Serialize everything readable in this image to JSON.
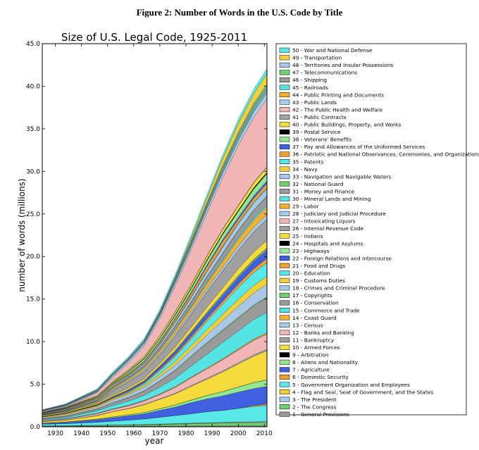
{
  "figure_title": "Figure 2: Number of Words in the U.S. Code by Title",
  "chart_data": {
    "type": "area",
    "title": "Size of U.S. Legal Code, 1925-2011",
    "xlabel": "year",
    "ylabel": "number of words (millions)",
    "xlim": [
      1925,
      2011
    ],
    "ylim": [
      0,
      45
    ],
    "x_ticks": [
      "1930",
      "1940",
      "1950",
      "1960",
      "1970",
      "1980",
      "1990",
      "2000",
      "2010"
    ],
    "y_ticks": [
      "0.0",
      "5.0",
      "10.0",
      "15.0",
      "20.0",
      "25.0",
      "30.0",
      "35.0",
      "40.0",
      "45.0"
    ],
    "legend_position": "right",
    "x": [
      1925,
      1934,
      1946,
      1952,
      1958,
      1964,
      1970,
      1976,
      1982,
      1988,
      1994,
      2000,
      2006,
      2011
    ],
    "series_colors": [
      "#9a9a9a",
      "#6fd06f",
      "#a9c7e6",
      "#f2d03a",
      "#58e8e8",
      "#f0a030",
      "#4060e0",
      "#90e890",
      "#000000",
      "#f5dc3c",
      "#a0a0a0",
      "#f3b6b6",
      "#a8ccec",
      "#f5b030",
      "#54e4e4"
    ],
    "series": [
      {
        "name": "1 - General Provisions",
        "values": [
          0.05,
          0.05,
          0.06,
          0.07,
          0.07,
          0.08,
          0.08,
          0.08,
          0.09,
          0.09,
          0.09,
          0.1,
          0.1,
          0.1
        ]
      },
      {
        "name": "2 - The Congress",
        "values": [
          0.04,
          0.05,
          0.08,
          0.1,
          0.12,
          0.14,
          0.18,
          0.22,
          0.26,
          0.3,
          0.33,
          0.36,
          0.38,
          0.4
        ]
      },
      {
        "name": "3 - The President",
        "values": [
          0.01,
          0.01,
          0.02,
          0.02,
          0.02,
          0.03,
          0.03,
          0.04,
          0.05,
          0.05,
          0.06,
          0.06,
          0.07,
          0.07
        ]
      },
      {
        "name": "4 - Flag and Seal, Seat of Government, and the States",
        "values": [
          0.01,
          0.01,
          0.02,
          0.02,
          0.02,
          0.02,
          0.03,
          0.03,
          0.03,
          0.03,
          0.04,
          0.04,
          0.04,
          0.04
        ]
      },
      {
        "name": "5 - Government Organization and Employees",
        "values": [
          0.2,
          0.25,
          0.35,
          0.45,
          0.55,
          0.65,
          0.8,
          0.95,
          1.1,
          1.3,
          1.4,
          1.6,
          1.8,
          1.9
        ]
      },
      {
        "name": "6 - Domestic Security",
        "values": [
          0,
          0,
          0,
          0,
          0,
          0,
          0,
          0,
          0,
          0,
          0,
          0,
          0.1,
          0.15
        ]
      },
      {
        "name": "7 - Agriculture",
        "values": [
          0.1,
          0.15,
          0.3,
          0.4,
          0.5,
          0.6,
          0.8,
          1.0,
          1.3,
          1.5,
          1.7,
          1.9,
          2.0,
          2.1
        ]
      },
      {
        "name": "8 - Aliens and Nationality",
        "values": [
          0.03,
          0.04,
          0.06,
          0.1,
          0.12,
          0.15,
          0.2,
          0.25,
          0.3,
          0.4,
          0.5,
          0.6,
          0.7,
          0.75
        ]
      },
      {
        "name": "9 - Arbitration",
        "values": [
          0.0,
          0.01,
          0.01,
          0.01,
          0.01,
          0.01,
          0.01,
          0.01,
          0.01,
          0.01,
          0.01,
          0.01,
          0.01,
          0.01
        ]
      },
      {
        "name": "10 - Armed Forces",
        "values": [
          0.15,
          0.2,
          0.4,
          0.6,
          0.7,
          0.9,
          1.1,
          1.3,
          1.6,
          1.9,
          2.3,
          2.7,
          3.1,
          3.4
        ]
      },
      {
        "name": "11 - Bankruptcy",
        "values": [
          0.01,
          0.02,
          0.03,
          0.03,
          0.04,
          0.04,
          0.05,
          0.06,
          0.1,
          0.11,
          0.12,
          0.14,
          0.16,
          0.17
        ]
      },
      {
        "name": "12 - Banks and Banking",
        "values": [
          0.1,
          0.12,
          0.2,
          0.25,
          0.3,
          0.4,
          0.5,
          0.7,
          0.9,
          1.1,
          1.3,
          1.5,
          1.7,
          1.8
        ]
      },
      {
        "name": "13 - Census",
        "values": [
          0.01,
          0.01,
          0.01,
          0.01,
          0.02,
          0.02,
          0.02,
          0.02,
          0.02,
          0.02,
          0.03,
          0.03,
          0.03,
          0.03
        ]
      },
      {
        "name": "14 - Coast Guard",
        "values": [
          0.02,
          0.02,
          0.04,
          0.05,
          0.05,
          0.06,
          0.06,
          0.07,
          0.08,
          0.09,
          0.1,
          0.11,
          0.13,
          0.14
        ]
      },
      {
        "name": "15 - Commerce and Trade",
        "values": [
          0.1,
          0.15,
          0.3,
          0.4,
          0.5,
          0.6,
          0.8,
          1.0,
          1.3,
          1.6,
          1.9,
          2.1,
          2.3,
          2.4
        ]
      },
      {
        "name": "16 - Conservation",
        "values": [
          0.1,
          0.15,
          0.2,
          0.3,
          0.4,
          0.5,
          0.7,
          0.9,
          1.1,
          1.3,
          1.4,
          1.5,
          1.6,
          1.7
        ]
      },
      {
        "name": "17 - Copyrights",
        "values": [
          0.01,
          0.01,
          0.02,
          0.02,
          0.02,
          0.03,
          0.03,
          0.06,
          0.07,
          0.08,
          0.09,
          0.1,
          0.1,
          0.11
        ]
      },
      {
        "name": "18 - Crimes and Criminal Procedure",
        "values": [
          0.1,
          0.12,
          0.2,
          0.3,
          0.35,
          0.4,
          0.5,
          0.6,
          0.7,
          0.9,
          1.1,
          1.3,
          1.4,
          1.5
        ]
      },
      {
        "name": "19 - Customs Duties",
        "values": [
          0.1,
          0.15,
          0.15,
          0.15,
          0.15,
          0.2,
          0.3,
          0.4,
          0.5,
          0.6,
          0.7,
          0.8,
          0.9,
          0.9
        ]
      },
      {
        "name": "20 - Education",
        "values": [
          0.01,
          0.02,
          0.04,
          0.06,
          0.1,
          0.2,
          0.4,
          0.6,
          0.8,
          1.0,
          1.2,
          1.4,
          1.5,
          1.6
        ]
      },
      {
        "name": "21 - Food and Drugs",
        "values": [
          0.02,
          0.03,
          0.05,
          0.07,
          0.1,
          0.12,
          0.15,
          0.2,
          0.25,
          0.3,
          0.35,
          0.4,
          0.45,
          0.5
        ]
      },
      {
        "name": "22 - Foreign Relations and Intercourse",
        "values": [
          0.03,
          0.04,
          0.06,
          0.1,
          0.15,
          0.2,
          0.3,
          0.4,
          0.5,
          0.6,
          0.7,
          0.8,
          0.9,
          1.0
        ]
      },
      {
        "name": "23 - Highways",
        "values": [
          0.0,
          0.0,
          0.0,
          0.02,
          0.04,
          0.05,
          0.06,
          0.08,
          0.1,
          0.12,
          0.13,
          0.15,
          0.16,
          0.17
        ]
      },
      {
        "name": "24 - Hospitals and Asylums",
        "values": [
          0.01,
          0.01,
          0.02,
          0.02,
          0.02,
          0.02,
          0.03,
          0.03,
          0.03,
          0.04,
          0.04,
          0.04,
          0.05,
          0.05
        ]
      },
      {
        "name": "25 - Indians",
        "values": [
          0.1,
          0.12,
          0.15,
          0.17,
          0.2,
          0.25,
          0.3,
          0.4,
          0.5,
          0.6,
          0.7,
          0.8,
          0.85,
          0.9
        ]
      },
      {
        "name": "26 - Internal Revenue Code",
        "values": [
          0,
          0,
          0,
          0.5,
          0.7,
          0.8,
          1.0,
          1.3,
          1.5,
          1.8,
          2.0,
          2.2,
          2.4,
          2.5
        ]
      },
      {
        "name": "27 - Intoxicating Liquors",
        "values": [
          0.01,
          0.01,
          0.01,
          0.01,
          0.01,
          0.01,
          0.01,
          0.01,
          0.01,
          0.01,
          0.01,
          0.01,
          0.01,
          0.01
        ]
      },
      {
        "name": "28 - Judiciary and Judicial Procedure",
        "values": [
          0.05,
          0.06,
          0.1,
          0.12,
          0.15,
          0.18,
          0.2,
          0.25,
          0.3,
          0.35,
          0.4,
          0.45,
          0.5,
          0.5
        ]
      },
      {
        "name": "29 - Labor",
        "values": [
          0.02,
          0.05,
          0.1,
          0.15,
          0.2,
          0.25,
          0.3,
          0.4,
          0.5,
          0.6,
          0.7,
          0.8,
          0.85,
          0.9
        ]
      },
      {
        "name": "30 - Mineral Lands and Mining",
        "values": [
          0.03,
          0.04,
          0.05,
          0.06,
          0.07,
          0.08,
          0.1,
          0.12,
          0.15,
          0.18,
          0.2,
          0.22,
          0.23,
          0.24
        ]
      },
      {
        "name": "31 - Money and Finance",
        "values": [
          0.05,
          0.06,
          0.1,
          0.12,
          0.15,
          0.2,
          0.3,
          0.4,
          0.5,
          0.6,
          0.7,
          0.8,
          0.9,
          1.0
        ]
      },
      {
        "name": "32 - National Guard",
        "values": [
          0.01,
          0.02,
          0.03,
          0.03,
          0.04,
          0.04,
          0.05,
          0.05,
          0.06,
          0.06,
          0.07,
          0.07,
          0.08,
          0.08
        ]
      },
      {
        "name": "33 - Navigation and Navigable Waters",
        "values": [
          0.05,
          0.06,
          0.1,
          0.12,
          0.15,
          0.2,
          0.3,
          0.4,
          0.5,
          0.6,
          0.7,
          0.75,
          0.8,
          0.85
        ]
      },
      {
        "name": "34 - Navy",
        "values": [
          0.05,
          0.06,
          0.08,
          0.08,
          0.05,
          0.02,
          0,
          0,
          0,
          0,
          0,
          0,
          0,
          0
        ]
      },
      {
        "name": "35 - Patents",
        "values": [
          0.01,
          0.02,
          0.02,
          0.03,
          0.03,
          0.04,
          0.04,
          0.05,
          0.06,
          0.07,
          0.08,
          0.1,
          0.11,
          0.12
        ]
      },
      {
        "name": "36 - Patriotic and National Observances, Ceremonies, and Organizations",
        "values": [
          0.02,
          0.03,
          0.05,
          0.08,
          0.1,
          0.15,
          0.2,
          0.3,
          0.4,
          0.5,
          0.6,
          0.4,
          0.45,
          0.5
        ]
      },
      {
        "name": "37 - Pay and Allowances of the Uniformed Services",
        "values": [
          0,
          0,
          0,
          0,
          0.05,
          0.08,
          0.1,
          0.12,
          0.15,
          0.18,
          0.2,
          0.25,
          0.3,
          0.3
        ]
      },
      {
        "name": "38 - Veterans' Benefits",
        "values": [
          0.01,
          0.05,
          0.1,
          0.12,
          0.2,
          0.25,
          0.3,
          0.35,
          0.4,
          0.5,
          0.6,
          0.7,
          0.8,
          0.85
        ]
      },
      {
        "name": "39 - Postal Service",
        "values": [
          0.02,
          0.03,
          0.04,
          0.05,
          0.06,
          0.07,
          0.08,
          0.1,
          0.11,
          0.12,
          0.13,
          0.14,
          0.15,
          0.15
        ]
      },
      {
        "name": "40 - Public Buildings, Property, and Works",
        "values": [
          0.03,
          0.05,
          0.08,
          0.1,
          0.15,
          0.2,
          0.25,
          0.3,
          0.35,
          0.4,
          0.45,
          0.5,
          0.55,
          0.55
        ]
      },
      {
        "name": "41 - Public Contracts",
        "values": [
          0.01,
          0.01,
          0.02,
          0.02,
          0.03,
          0.03,
          0.04,
          0.05,
          0.06,
          0.07,
          0.08,
          0.09,
          0.1,
          0.1
        ]
      },
      {
        "name": "42 - The Public Health and Welfare",
        "values": [
          0.03,
          0.05,
          0.3,
          0.5,
          0.8,
          1.2,
          2.0,
          3.0,
          4.0,
          5.0,
          6.0,
          7.0,
          7.6,
          8.0
        ]
      },
      {
        "name": "43 - Public Lands",
        "values": [
          0.1,
          0.12,
          0.15,
          0.2,
          0.25,
          0.3,
          0.35,
          0.4,
          0.45,
          0.5,
          0.55,
          0.6,
          0.65,
          0.7
        ]
      },
      {
        "name": "44 - Public Printing and Documents",
        "values": [
          0.01,
          0.01,
          0.01,
          0.02,
          0.02,
          0.02,
          0.03,
          0.03,
          0.04,
          0.04,
          0.05,
          0.05,
          0.05,
          0.05
        ]
      },
      {
        "name": "45 - Railroads",
        "values": [
          0.03,
          0.04,
          0.05,
          0.06,
          0.07,
          0.08,
          0.1,
          0.15,
          0.18,
          0.2,
          0.22,
          0.24,
          0.25,
          0.25
        ]
      },
      {
        "name": "46 - Shipping",
        "values": [
          0.05,
          0.06,
          0.08,
          0.1,
          0.12,
          0.14,
          0.15,
          0.18,
          0.2,
          0.22,
          0.25,
          0.28,
          0.3,
          0.3
        ]
      },
      {
        "name": "47 - Telecommunications",
        "values": [
          0.01,
          0.02,
          0.03,
          0.04,
          0.05,
          0.06,
          0.07,
          0.1,
          0.12,
          0.15,
          0.2,
          0.25,
          0.27,
          0.28
        ]
      },
      {
        "name": "48 - Territories and Insular Possessions",
        "values": [
          0.05,
          0.06,
          0.07,
          0.08,
          0.09,
          0.1,
          0.12,
          0.13,
          0.14,
          0.15,
          0.15,
          0.16,
          0.16,
          0.16
        ]
      },
      {
        "name": "49 - Transportation",
        "values": [
          0,
          0,
          0,
          0,
          0,
          0,
          0,
          0.1,
          0.3,
          0.5,
          0.8,
          1.0,
          1.1,
          1.2
        ]
      },
      {
        "name": "50 - War and National Defense",
        "values": [
          0.03,
          0.05,
          0.1,
          0.15,
          0.15,
          0.2,
          0.25,
          0.3,
          0.35,
          0.4,
          0.45,
          0.5,
          0.55,
          0.6
        ]
      }
    ]
  }
}
